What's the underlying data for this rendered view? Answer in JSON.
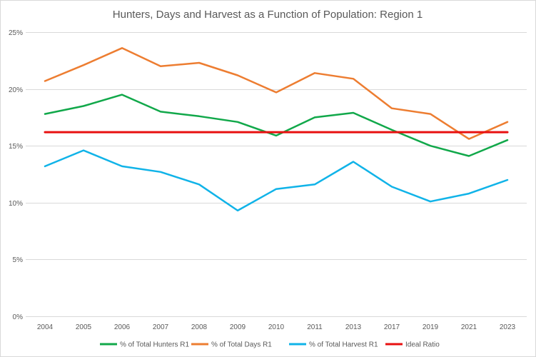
{
  "chart_data": {
    "type": "line",
    "title": "Hunters, Days and Harvest as a Function of Population: Region 1",
    "xlabel": "",
    "ylabel": "",
    "ylim": [
      0,
      25
    ],
    "y_ticks": [
      "0%",
      "5%",
      "10%",
      "15%",
      "20%",
      "25%"
    ],
    "grid": true,
    "legend_position": "bottom",
    "categories": [
      "2004",
      "2005",
      "2006",
      "2007",
      "2008",
      "2009",
      "2010",
      "2011",
      "2013",
      "2017",
      "2019",
      "2021",
      "2023"
    ],
    "series": [
      {
        "name": "% of Total Hunters R1",
        "color": "#11a84a",
        "values": [
          17.8,
          18.5,
          19.5,
          18.0,
          17.6,
          17.1,
          15.9,
          17.5,
          17.9,
          16.4,
          15.0,
          14.1,
          15.5
        ]
      },
      {
        "name": "% of Total Days R1",
        "color": "#ed7d31",
        "values": [
          20.7,
          22.1,
          23.6,
          22.0,
          22.3,
          21.2,
          19.7,
          21.4,
          20.9,
          18.3,
          17.8,
          15.6,
          17.1
        ]
      },
      {
        "name": "% of Total Harvest R1",
        "color": "#10b3e8",
        "values": [
          13.2,
          14.6,
          13.2,
          12.7,
          11.6,
          9.3,
          11.2,
          11.6,
          13.6,
          11.4,
          10.1,
          10.8,
          12.0
        ]
      },
      {
        "name": "Ideal Ratio",
        "color": "#e81010",
        "values": [
          16.2,
          16.2,
          16.2,
          16.2,
          16.2,
          16.2,
          16.2,
          16.2,
          16.2,
          16.2,
          16.2,
          16.2,
          16.2
        ]
      }
    ]
  }
}
